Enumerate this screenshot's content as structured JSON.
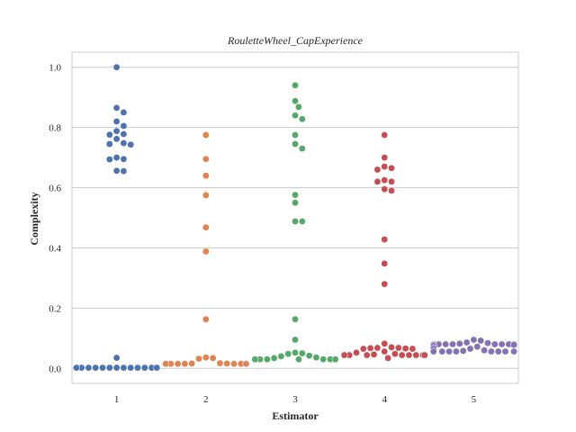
{
  "chart_data": {
    "type": "scatter",
    "subtype": "swarm",
    "title": "RouletteWheel_CapExperience",
    "xlabel": "Estimator",
    "ylabel": "Complexity",
    "categories": [
      "1",
      "2",
      "3",
      "4",
      "5"
    ],
    "ylim": [
      -0.05,
      1.05
    ],
    "yticks": [
      "0.0",
      "0.2",
      "0.4",
      "0.6",
      "0.8",
      "1.0"
    ],
    "grid": true,
    "legend": "none",
    "series": [
      {
        "category": "1",
        "color": "#4c72b0",
        "values": [
          1.0,
          0.865,
          0.85,
          0.82,
          0.805,
          0.788,
          0.778,
          0.776,
          0.762,
          0.748,
          0.745,
          0.743,
          0.7,
          0.695,
          0.694,
          0.656,
          0.655,
          0.035,
          0.002,
          0.002,
          0.002,
          0.002,
          0.002,
          0.002,
          0.002,
          0.002,
          0.002,
          0.002,
          0.002,
          0.002,
          0.002,
          0.002,
          0.002,
          0.002,
          0.002,
          0.002,
          0.002
        ]
      },
      {
        "category": "2",
        "color": "#dd8452",
        "values": [
          0.775,
          0.695,
          0.64,
          0.575,
          0.468,
          0.388,
          0.163,
          0.036,
          0.034,
          0.032,
          0.017,
          0.016,
          0.016,
          0.015,
          0.015,
          0.015,
          0.015,
          0.015,
          0.015,
          0.015,
          0.015,
          0.015,
          0.015,
          0.015,
          0.015,
          0.015
        ]
      },
      {
        "category": "3",
        "color": "#55a868",
        "values": [
          0.94,
          0.888,
          0.868,
          0.84,
          0.828,
          0.775,
          0.745,
          0.73,
          0.576,
          0.55,
          0.488,
          0.488,
          0.163,
          0.095,
          0.052,
          0.05,
          0.048,
          0.042,
          0.04,
          0.036,
          0.034,
          0.03,
          0.03,
          0.03,
          0.03,
          0.03,
          0.03,
          0.03,
          0.03,
          0.03,
          0.03,
          0.03,
          0.03
        ]
      },
      {
        "category": "4",
        "color": "#c44e52",
        "values": [
          0.775,
          0.7,
          0.67,
          0.665,
          0.66,
          0.625,
          0.62,
          0.62,
          0.595,
          0.59,
          0.428,
          0.348,
          0.28,
          0.082,
          0.07,
          0.068,
          0.068,
          0.067,
          0.066,
          0.065,
          0.065,
          0.056,
          0.052,
          0.048,
          0.046,
          0.044,
          0.044,
          0.044,
          0.044,
          0.044,
          0.044,
          0.044,
          0.044,
          0.044,
          0.044,
          0.044,
          0.044,
          0.044,
          0.044,
          0.044,
          0.044,
          0.044,
          0.034
        ]
      },
      {
        "category": "5",
        "color": "#8172b3",
        "values": [
          0.095,
          0.092,
          0.086,
          0.084,
          0.082,
          0.08,
          0.08,
          0.08,
          0.08,
          0.08,
          0.08,
          0.08,
          0.08,
          0.08,
          0.078,
          0.078,
          0.075,
          0.072,
          0.068,
          0.065,
          0.065,
          0.06,
          0.058,
          0.056,
          0.056,
          0.056,
          0.056,
          0.056,
          0.056,
          0.056,
          0.056,
          0.056,
          0.056,
          0.056,
          0.056,
          0.056,
          0.056,
          0.056,
          0.056,
          0.056,
          0.056,
          0.056,
          0.056
        ]
      }
    ]
  }
}
